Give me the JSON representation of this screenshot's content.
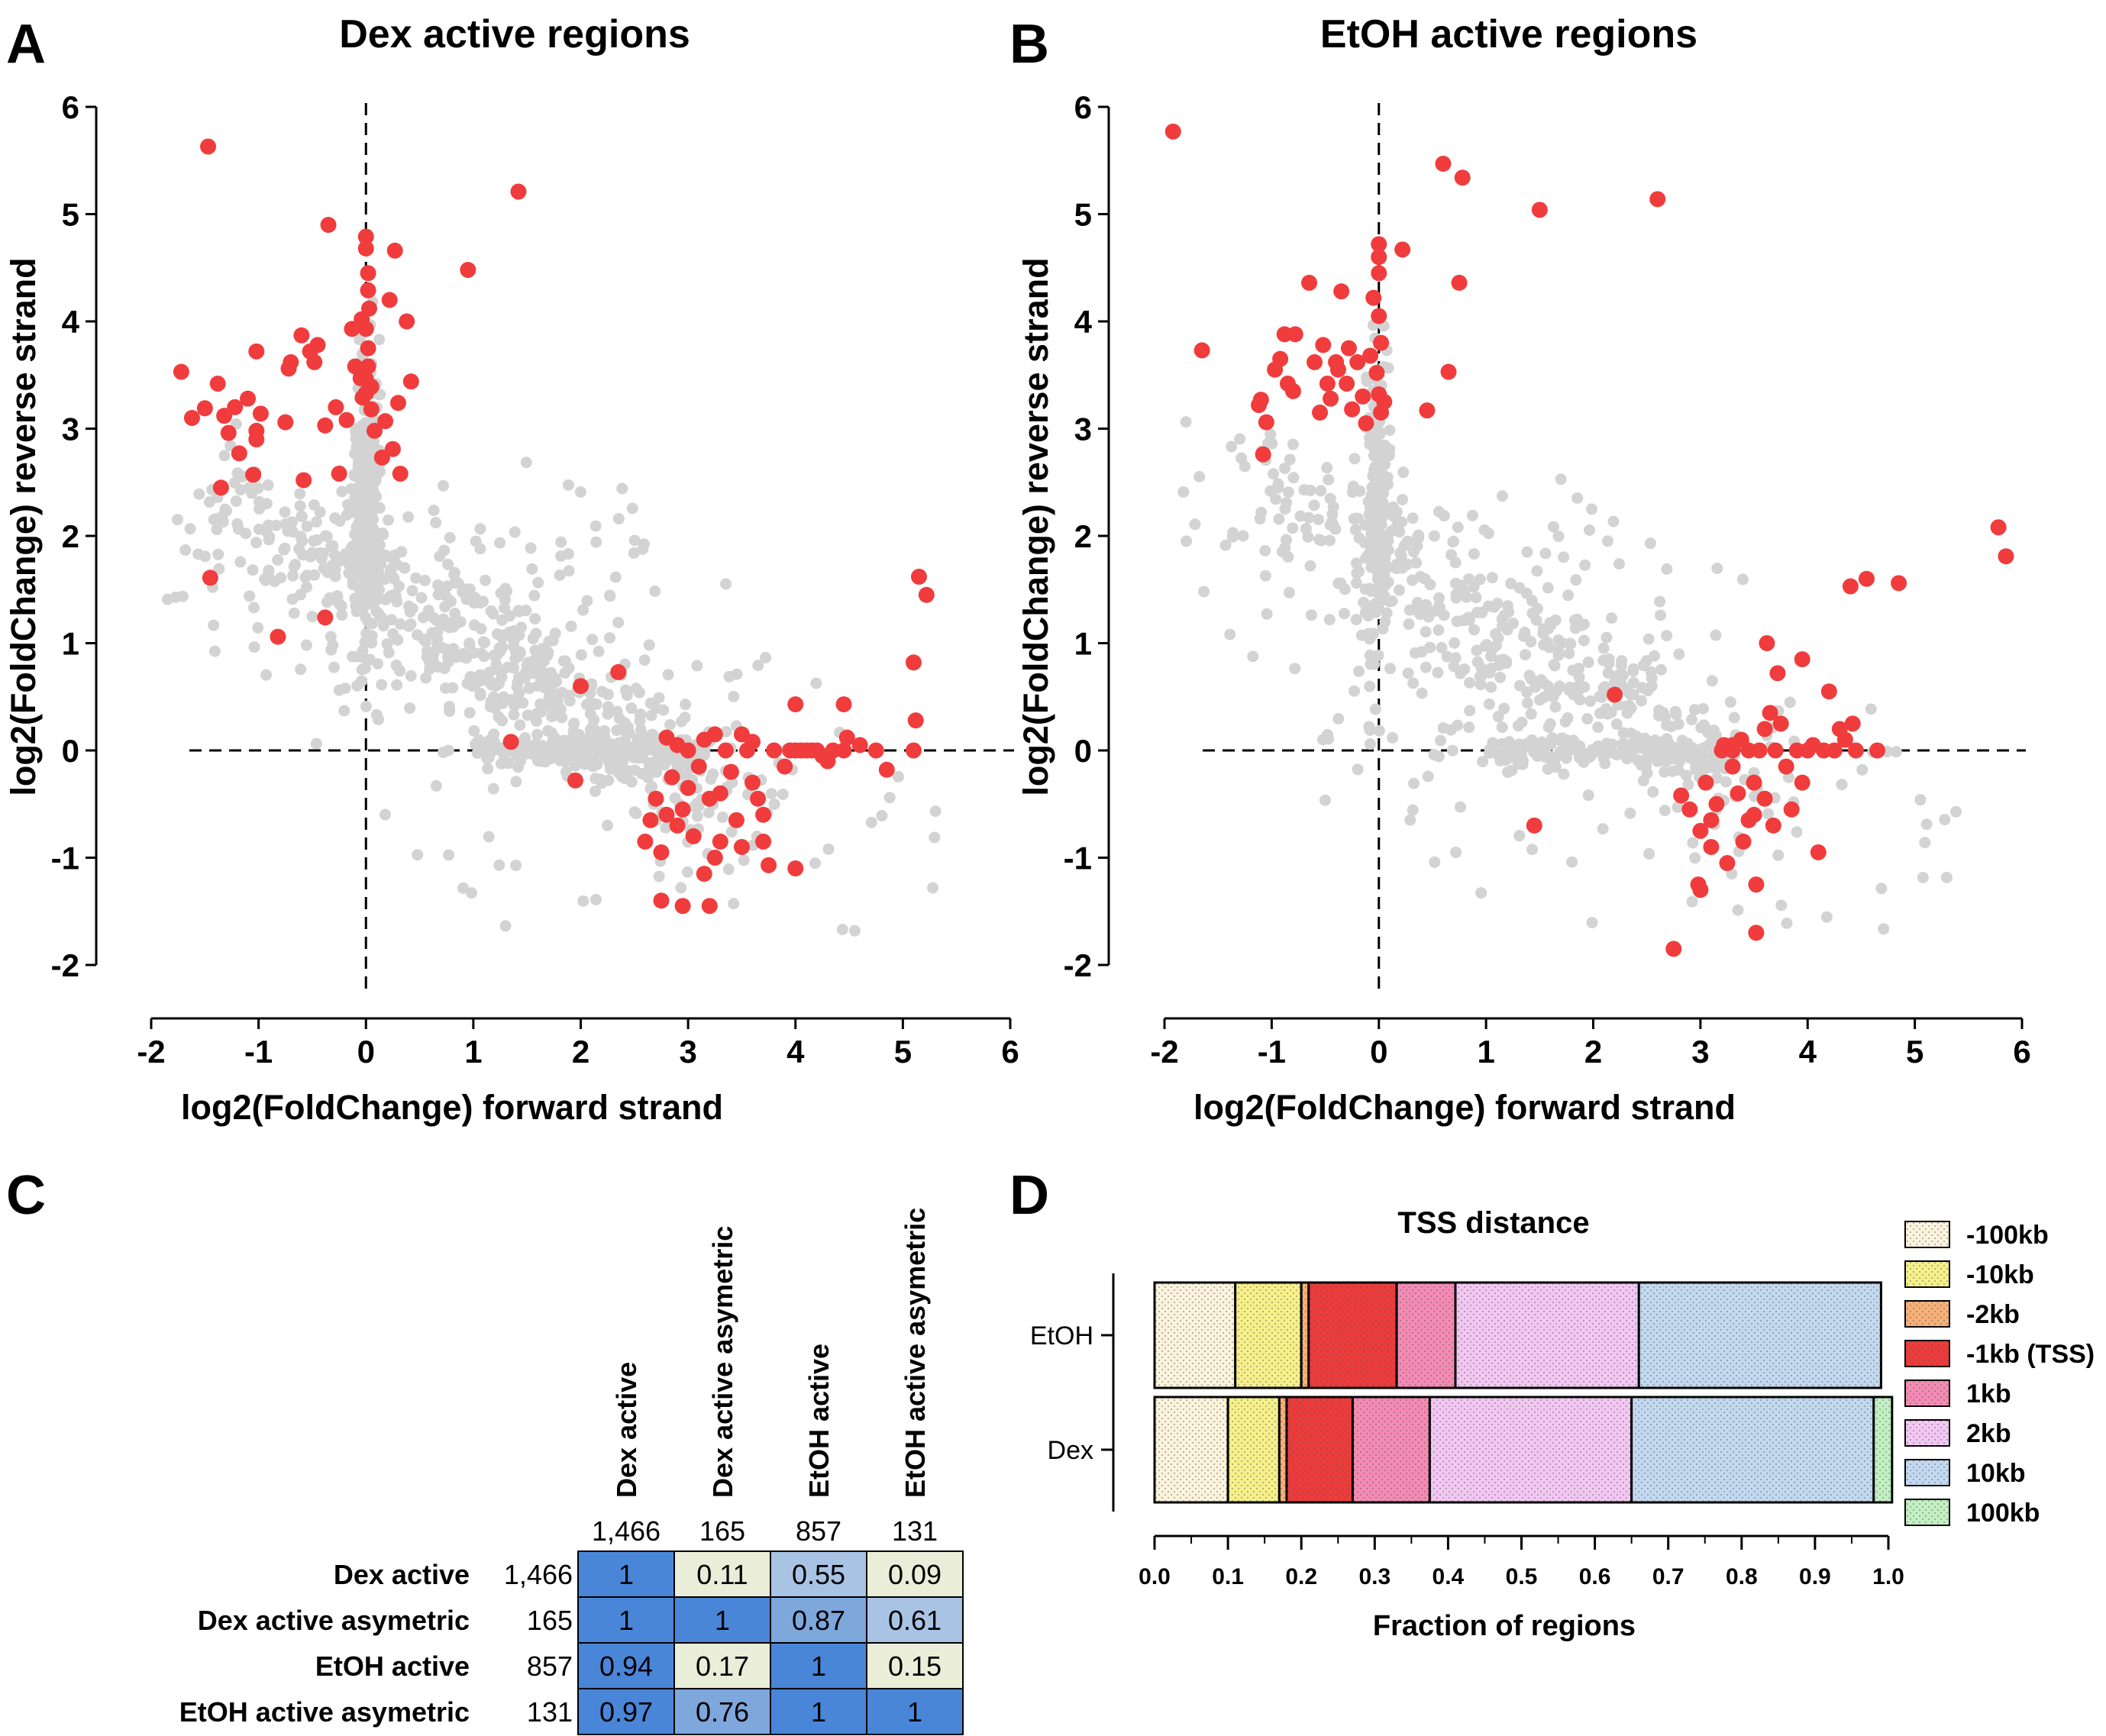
{
  "panel_letters": [
    "A",
    "B",
    "C",
    "D"
  ],
  "colors": {
    "background_points": "#d3d3d3",
    "highlight_points": "#f03c3c",
    "heat_high": "#4a86d8",
    "heat_mid": "#b9cde3",
    "heat_low": "#eaeed8"
  },
  "chart_data": [
    {
      "id": "A",
      "type": "scatter",
      "title": "Dex active regions",
      "xlabel": "log2(FoldChange) forward strand",
      "ylabel": "log2(FoldChange) reverse strand",
      "xlim": [
        -2,
        6
      ],
      "ylim": [
        -2,
        6
      ],
      "xticks": [
        "-2",
        "-1",
        "0",
        "1",
        "2",
        "3",
        "4",
        "5",
        "6"
      ],
      "yticks": [
        "-2",
        "-1",
        "0",
        "1",
        "2",
        "3",
        "4",
        "5",
        "6"
      ],
      "reference_lines": {
        "x": 0,
        "y": 0,
        "style": "dashed"
      },
      "highlighted": [
        [
          -1.47,
          5.63
        ],
        [
          -1.72,
          3.53
        ],
        [
          -1.62,
          3.1
        ],
        [
          -1.5,
          3.19
        ],
        [
          -1.38,
          3.42
        ],
        [
          -1.32,
          3.12
        ],
        [
          -1.28,
          2.96
        ],
        [
          -1.22,
          3.2
        ],
        [
          -1.18,
          2.77
        ],
        [
          -1.1,
          3.28
        ],
        [
          -1.05,
          2.57
        ],
        [
          -1.02,
          2.98
        ],
        [
          -1.02,
          2.9
        ],
        [
          -0.98,
          3.14
        ],
        [
          -1.35,
          2.45
        ],
        [
          -1.45,
          1.61
        ],
        [
          -0.82,
          1.06
        ],
        [
          -1.02,
          3.72
        ],
        [
          -0.75,
          3.06
        ],
        [
          -0.72,
          3.56
        ],
        [
          -0.7,
          3.62
        ],
        [
          -0.6,
          3.87
        ],
        [
          -0.58,
          2.52
        ],
        [
          -0.52,
          3.72
        ],
        [
          -0.48,
          3.62
        ],
        [
          -0.45,
          3.78
        ],
        [
          -0.38,
          3.03
        ],
        [
          -0.35,
          4.9
        ],
        [
          -0.28,
          3.2
        ],
        [
          -0.25,
          2.58
        ],
        [
          -0.38,
          1.24
        ],
        [
          -0.13,
          3.93
        ],
        [
          -0.18,
          3.08
        ],
        [
          -0.1,
          3.58
        ],
        [
          -0.05,
          3.47
        ],
        [
          -0.04,
          4.02
        ],
        [
          -0.03,
          3.29
        ],
        [
          0.0,
          4.68
        ],
        [
          0.02,
          4.45
        ],
        [
          0.02,
          4.29
        ],
        [
          0.0,
          3.46
        ],
        [
          0.0,
          3.33
        ],
        [
          0.02,
          3.58
        ],
        [
          0.03,
          4.12
        ],
        [
          0.0,
          4.79
        ],
        [
          0.05,
          3.39
        ],
        [
          0.05,
          3.18
        ],
        [
          0.02,
          3.75
        ],
        [
          0.0,
          3.93
        ],
        [
          0.08,
          2.98
        ],
        [
          0.15,
          2.73
        ],
        [
          0.18,
          3.07
        ],
        [
          0.22,
          4.2
        ],
        [
          0.27,
          4.66
        ],
        [
          0.3,
          3.24
        ],
        [
          0.25,
          2.81
        ],
        [
          0.32,
          2.58
        ],
        [
          0.38,
          4.0
        ],
        [
          0.42,
          3.44
        ],
        [
          0.95,
          4.48
        ],
        [
          1.42,
          5.21
        ],
        [
          1.35,
          0.08
        ],
        [
          2.0,
          0.6
        ],
        [
          1.95,
          -0.28
        ],
        [
          2.35,
          0.73
        ],
        [
          2.6,
          -0.85
        ],
        [
          2.65,
          -0.65
        ],
        [
          2.7,
          -0.45
        ],
        [
          2.75,
          -0.95
        ],
        [
          2.8,
          -0.6
        ],
        [
          2.85,
          -0.25
        ],
        [
          2.9,
          -0.7
        ],
        [
          2.95,
          -0.55
        ],
        [
          3.0,
          -0.35
        ],
        [
          2.9,
          0.05
        ],
        [
          3.05,
          -0.8
        ],
        [
          3.1,
          -0.15
        ],
        [
          3.15,
          0.1
        ],
        [
          3.2,
          -0.45
        ],
        [
          3.25,
          -1.0
        ],
        [
          3.3,
          -0.85
        ],
        [
          3.35,
          0.0
        ],
        [
          3.4,
          -0.2
        ],
        [
          3.45,
          -0.65
        ],
        [
          3.5,
          -0.9
        ],
        [
          3.55,
          0.0
        ],
        [
          3.6,
          -0.3
        ],
        [
          3.65,
          -0.45
        ],
        [
          3.7,
          -0.85
        ],
        [
          3.75,
          -1.07
        ],
        [
          3.8,
          0.0
        ],
        [
          3.9,
          -0.15
        ],
        [
          3.95,
          0.0
        ],
        [
          4.0,
          0.0
        ],
        [
          4.05,
          0.0
        ],
        [
          4.1,
          0.0
        ],
        [
          4.15,
          0.0
        ],
        [
          4.2,
          0.0
        ],
        [
          4.0,
          -1.1
        ],
        [
          4.0,
          0.43
        ],
        [
          4.25,
          -0.05
        ],
        [
          4.3,
          -0.1
        ],
        [
          4.35,
          0.0
        ],
        [
          4.45,
          0.0
        ],
        [
          4.45,
          0.43
        ],
        [
          4.6,
          0.05
        ],
        [
          4.75,
          0.0
        ],
        [
          4.85,
          -0.18
        ],
        [
          4.48,
          0.12
        ],
        [
          5.1,
          0.0
        ],
        [
          5.12,
          0.28
        ],
        [
          5.1,
          0.82
        ],
        [
          5.15,
          1.62
        ],
        [
          5.22,
          1.45
        ],
        [
          2.8,
          0.12
        ],
        [
          2.95,
          -1.45
        ],
        [
          3.2,
          -1.45
        ],
        [
          2.75,
          -1.4
        ],
        [
          3.0,
          0.0
        ],
        [
          3.25,
          0.15
        ],
        [
          3.5,
          0.15
        ],
        [
          3.7,
          -0.6
        ],
        [
          3.15,
          -1.15
        ],
        [
          3.3,
          -0.4
        ],
        [
          3.6,
          0.08
        ]
      ]
    },
    {
      "id": "B",
      "type": "scatter",
      "title": "EtOH active regions",
      "xlabel": "log2(FoldChange) forward strand",
      "ylabel": "log2(FoldChange) reverse strand",
      "xlim": [
        -2,
        6
      ],
      "ylim": [
        -2,
        6
      ],
      "xticks": [
        "-2",
        "-1",
        "0",
        "1",
        "2",
        "3",
        "4",
        "5",
        "6"
      ],
      "yticks": [
        "-2",
        "-1",
        "0",
        "1",
        "2",
        "3",
        "4",
        "5",
        "6"
      ],
      "reference_lines": {
        "x": 0,
        "y": 0,
        "style": "dashed"
      },
      "highlighted": [
        [
          -1.92,
          5.77
        ],
        [
          -1.65,
          3.73
        ],
        [
          -1.12,
          3.22
        ],
        [
          -1.1,
          3.27
        ],
        [
          -1.08,
          2.76
        ],
        [
          -1.05,
          3.06
        ],
        [
          -0.97,
          3.55
        ],
        [
          -0.92,
          3.65
        ],
        [
          -0.88,
          3.88
        ],
        [
          -0.85,
          3.42
        ],
        [
          -0.8,
          3.35
        ],
        [
          -0.78,
          3.88
        ],
        [
          -0.65,
          4.36
        ],
        [
          -0.6,
          3.62
        ],
        [
          -0.55,
          3.15
        ],
        [
          -0.52,
          3.78
        ],
        [
          -0.48,
          3.42
        ],
        [
          -0.45,
          3.28
        ],
        [
          -0.4,
          3.62
        ],
        [
          -0.38,
          3.55
        ],
        [
          -0.35,
          4.28
        ],
        [
          -0.3,
          3.42
        ],
        [
          -0.28,
          3.75
        ],
        [
          -0.25,
          3.18
        ],
        [
          -0.2,
          3.62
        ],
        [
          -0.15,
          3.3
        ],
        [
          -0.12,
          3.05
        ],
        [
          -0.08,
          3.68
        ],
        [
          -0.05,
          4.22
        ],
        [
          -0.02,
          3.52
        ],
        [
          0.0,
          4.72
        ],
        [
          0.0,
          4.45
        ],
        [
          0.0,
          4.6
        ],
        [
          0.0,
          4.05
        ],
        [
          0.02,
          3.8
        ],
        [
          0.0,
          3.32
        ],
        [
          0.02,
          3.15
        ],
        [
          0.05,
          3.25
        ],
        [
          0.22,
          4.67
        ],
        [
          0.45,
          3.17
        ],
        [
          0.6,
          5.47
        ],
        [
          0.78,
          5.34
        ],
        [
          0.65,
          3.53
        ],
        [
          0.75,
          4.36
        ],
        [
          1.5,
          5.04
        ],
        [
          2.6,
          5.14
        ],
        [
          1.45,
          -0.7
        ],
        [
          2.2,
          0.52
        ],
        [
          2.75,
          -1.85
        ],
        [
          2.82,
          -0.42
        ],
        [
          2.9,
          -0.55
        ],
        [
          2.98,
          -1.25
        ],
        [
          3.0,
          -0.75
        ],
        [
          3.0,
          -1.3
        ],
        [
          3.05,
          -0.3
        ],
        [
          3.1,
          -0.9
        ],
        [
          3.1,
          -0.65
        ],
        [
          3.15,
          -0.5
        ],
        [
          3.2,
          0.0
        ],
        [
          3.22,
          0.05
        ],
        [
          3.25,
          -1.05
        ],
        [
          3.3,
          0.0
        ],
        [
          3.3,
          -0.15
        ],
        [
          3.35,
          -0.4
        ],
        [
          3.38,
          0.1
        ],
        [
          3.4,
          -0.85
        ],
        [
          3.45,
          0.0
        ],
        [
          3.5,
          -0.6
        ],
        [
          3.5,
          -0.3
        ],
        [
          3.52,
          -1.25
        ],
        [
          3.55,
          0.0
        ],
        [
          3.6,
          0.2
        ],
        [
          3.62,
          1.0
        ],
        [
          3.65,
          0.35
        ],
        [
          3.68,
          -0.7
        ],
        [
          3.7,
          0.0
        ],
        [
          3.72,
          0.72
        ],
        [
          3.75,
          0.25
        ],
        [
          3.8,
          -0.15
        ],
        [
          3.85,
          -0.55
        ],
        [
          3.9,
          0.0
        ],
        [
          3.95,
          0.85
        ],
        [
          3.95,
          -0.3
        ],
        [
          4.0,
          0.0
        ],
        [
          4.05,
          0.05
        ],
        [
          4.1,
          -0.95
        ],
        [
          4.15,
          0.0
        ],
        [
          4.2,
          0.55
        ],
        [
          4.25,
          0.0
        ],
        [
          4.3,
          0.2
        ],
        [
          4.35,
          0.1
        ],
        [
          4.4,
          1.53
        ],
        [
          4.42,
          0.25
        ],
        [
          4.45,
          0.0
        ],
        [
          4.55,
          1.6
        ],
        [
          4.65,
          0.0
        ],
        [
          4.85,
          1.56
        ],
        [
          5.78,
          2.08
        ],
        [
          5.85,
          1.81
        ],
        [
          3.52,
          -1.7
        ],
        [
          3.45,
          -0.65
        ],
        [
          3.6,
          -0.45
        ],
        [
          3.3,
          0.05
        ]
      ]
    },
    {
      "id": "C",
      "type": "heatmap",
      "columns": [
        "Dex active",
        "Dex active asymetric",
        "EtOH active",
        "EtOH active asymetric"
      ],
      "column_counts": [
        "1,466",
        "165",
        "857",
        "131"
      ],
      "rows": [
        "Dex active",
        "Dex active asymetric",
        "EtOH active",
        "EtOH active asymetric"
      ],
      "row_counts": [
        "1,466",
        "165",
        "857",
        "131"
      ],
      "values": [
        [
          "1",
          "0.11",
          "0.55",
          "0.09"
        ],
        [
          "1",
          "1",
          "0.87",
          "0.61"
        ],
        [
          "0.94",
          "0.17",
          "1",
          "0.15"
        ],
        [
          "0.97",
          "0.76",
          "1",
          "1"
        ]
      ]
    },
    {
      "id": "D",
      "type": "bar",
      "orientation": "horizontal",
      "stacked": true,
      "title": "TSS distance",
      "xlabel": "Fraction of regions",
      "xlim": [
        0,
        1
      ],
      "xticks": [
        "0.0",
        "0.1",
        "0.2",
        "0.3",
        "0.4",
        "0.5",
        "0.6",
        "0.7",
        "0.8",
        "0.9",
        "1.0"
      ],
      "categories": [
        "EtOH",
        "Dex"
      ],
      "legend_position": "right",
      "series": [
        {
          "name": "-100kb",
          "color": "#fbf3dc",
          "values": [
            0.11,
            0.1
          ]
        },
        {
          "name": "-10kb",
          "color": "#f6f08a",
          "values": [
            0.09,
            0.07
          ]
        },
        {
          "name": "-2kb",
          "color": "#f6b078",
          "values": [
            0.01,
            0.01
          ]
        },
        {
          "name": "-1kb (TSS)",
          "color": "#ee3b3b",
          "values": [
            0.12,
            0.09
          ]
        },
        {
          "name": "1kb",
          "color": "#f48bb4",
          "values": [
            0.08,
            0.105
          ]
        },
        {
          "name": "2kb",
          "color": "#f2c8f3",
          "values": [
            0.25,
            0.275
          ]
        },
        {
          "name": "10kb",
          "color": "#c3d9f0",
          "values": [
            0.33,
            0.33
          ]
        },
        {
          "name": "100kb",
          "color": "#c2f0c2",
          "values": [
            0.0,
            0.025
          ]
        }
      ]
    }
  ]
}
